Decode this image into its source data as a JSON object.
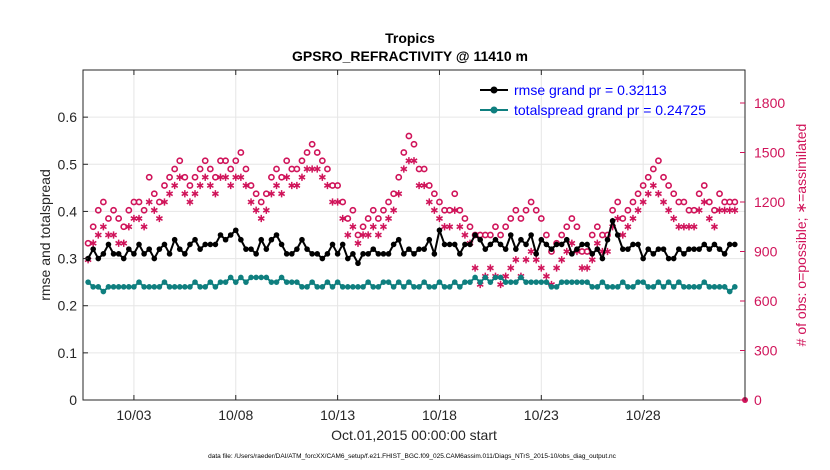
{
  "chart_data": {
    "type": "line",
    "title": "Tropics",
    "subtitle": "GPSRO_REFRACTIVITY @ 11410 m",
    "xlabel": "Oct.01,2015 00:00:00 start",
    "ylabel_left": "rmse and totalspread",
    "ylabel_right": "# of obs: o=possible; ∗=assimilated",
    "footnote": "data file: /Users/raeder/DAI/ATM_forcXX/CAM6_setup/f.e21.FHIST_BGC.f09_025.CAM6assim.011/Diags_NTrS_2015-10/obs_diag_output.nc",
    "xlim": [
      0.5,
      33.0
    ],
    "ylim_left": [
      0,
      0.7
    ],
    "ylim_right": [
      0,
      2000
    ],
    "xticks": [
      3,
      8,
      13,
      18,
      23,
      28
    ],
    "xtick_labels": [
      "10/03",
      "10/08",
      "10/13",
      "10/18",
      "10/23",
      "10/28"
    ],
    "yticks_left": [
      0,
      0.1,
      0.2,
      0.3,
      0.4,
      0.5,
      0.6
    ],
    "ytick_labels_left": [
      "0",
      "0.1",
      "0.2",
      "0.3",
      "0.4",
      "0.5",
      "0.6"
    ],
    "yticks_right": [
      0,
      300,
      600,
      900,
      1200,
      1500,
      1800
    ],
    "ytick_labels_right": [
      "0",
      "300",
      "600",
      "900",
      "1200",
      "1500",
      "1800"
    ],
    "legend": [
      "rmse grand pr = 0.32113",
      "totalspread grand pr = 0.24725"
    ],
    "colors": {
      "rmse": "#000000",
      "spread": "#0f7f7f",
      "obs": "#d0145a",
      "grid": "#e6e6e6",
      "legend_text": "#0000ff"
    },
    "grid": true,
    "x": [
      0.75,
      1.0,
      1.25,
      1.5,
      1.75,
      2.0,
      2.25,
      2.5,
      2.75,
      3.0,
      3.25,
      3.5,
      3.75,
      4.0,
      4.25,
      4.5,
      4.75,
      5.0,
      5.25,
      5.5,
      5.75,
      6.0,
      6.25,
      6.5,
      6.75,
      7.0,
      7.25,
      7.5,
      7.75,
      8.0,
      8.25,
      8.5,
      8.75,
      9.0,
      9.25,
      9.5,
      9.75,
      10.0,
      10.25,
      10.5,
      10.75,
      11.0,
      11.25,
      11.5,
      11.75,
      12.0,
      12.25,
      12.5,
      12.75,
      13.0,
      13.25,
      13.5,
      13.75,
      14.0,
      14.25,
      14.5,
      14.75,
      15.0,
      15.25,
      15.5,
      15.75,
      16.0,
      16.25,
      16.5,
      16.75,
      17.0,
      17.25,
      17.5,
      17.75,
      18.0,
      18.25,
      18.5,
      18.75,
      19.0,
      19.25,
      19.5,
      19.75,
      20.0,
      20.25,
      20.5,
      20.75,
      21.0,
      21.25,
      21.5,
      21.75,
      22.0,
      22.25,
      22.5,
      22.75,
      23.0,
      23.25,
      23.5,
      23.75,
      24.0,
      24.25,
      24.5,
      24.75,
      25.0,
      25.25,
      25.5,
      25.75,
      26.0,
      26.25,
      26.5,
      26.75,
      27.0,
      27.25,
      27.5,
      27.75,
      28.0,
      28.25,
      28.5,
      28.75,
      29.0,
      29.25,
      29.5,
      29.75,
      30.0,
      30.25,
      30.5,
      30.75,
      31.0,
      31.25,
      31.5,
      31.75,
      32.0,
      32.25,
      32.5
    ],
    "series": [
      {
        "name": "rmse",
        "values": [
          0.3,
          0.32,
          0.3,
          0.31,
          0.33,
          0.31,
          0.31,
          0.3,
          0.32,
          0.31,
          0.33,
          0.31,
          0.32,
          0.3,
          0.32,
          0.33,
          0.31,
          0.34,
          0.32,
          0.31,
          0.33,
          0.34,
          0.32,
          0.33,
          0.33,
          0.33,
          0.35,
          0.34,
          0.35,
          0.36,
          0.34,
          0.32,
          0.32,
          0.31,
          0.34,
          0.32,
          0.34,
          0.35,
          0.33,
          0.31,
          0.31,
          0.32,
          0.34,
          0.32,
          0.31,
          0.31,
          0.3,
          0.31,
          0.33,
          0.31,
          0.33,
          0.3,
          0.31,
          0.29,
          0.31,
          0.31,
          0.32,
          0.31,
          0.31,
          0.31,
          0.33,
          0.34,
          0.31,
          0.32,
          0.31,
          0.32,
          0.32,
          0.34,
          0.31,
          0.36,
          0.33,
          0.33,
          0.33,
          0.31,
          0.33,
          0.33,
          0.35,
          0.34,
          0.32,
          0.33,
          0.34,
          0.33,
          0.32,
          0.35,
          0.32,
          0.34,
          0.33,
          0.35,
          0.31,
          0.34,
          0.33,
          0.32,
          0.33,
          0.33,
          0.34,
          0.31,
          0.32,
          0.33,
          0.33,
          0.31,
          0.32,
          0.3,
          0.34,
          0.38,
          0.35,
          0.32,
          0.32,
          0.33,
          0.33,
          0.3,
          0.32,
          0.31,
          0.32,
          0.32,
          0.3,
          0.3,
          0.32,
          0.31,
          0.32,
          0.32,
          0.32,
          0.33,
          0.32,
          0.33,
          0.32,
          0.31,
          0.33,
          0.33
        ]
      },
      {
        "name": "totalspread",
        "values": [
          0.25,
          0.24,
          0.24,
          0.23,
          0.24,
          0.24,
          0.24,
          0.24,
          0.24,
          0.24,
          0.25,
          0.24,
          0.24,
          0.24,
          0.24,
          0.25,
          0.24,
          0.24,
          0.24,
          0.24,
          0.24,
          0.25,
          0.24,
          0.24,
          0.25,
          0.24,
          0.25,
          0.25,
          0.26,
          0.25,
          0.26,
          0.25,
          0.26,
          0.26,
          0.26,
          0.26,
          0.25,
          0.25,
          0.26,
          0.25,
          0.25,
          0.25,
          0.24,
          0.24,
          0.25,
          0.24,
          0.24,
          0.25,
          0.24,
          0.25,
          0.24,
          0.24,
          0.24,
          0.24,
          0.24,
          0.25,
          0.24,
          0.24,
          0.25,
          0.25,
          0.24,
          0.25,
          0.24,
          0.25,
          0.24,
          0.24,
          0.25,
          0.24,
          0.24,
          0.25,
          0.24,
          0.24,
          0.25,
          0.24,
          0.25,
          0.25,
          0.26,
          0.25,
          0.26,
          0.25,
          0.26,
          0.26,
          0.25,
          0.25,
          0.25,
          0.26,
          0.25,
          0.25,
          0.25,
          0.25,
          0.25,
          0.24,
          0.24,
          0.25,
          0.25,
          0.25,
          0.25,
          0.25,
          0.25,
          0.24,
          0.24,
          0.25,
          0.24,
          0.24,
          0.24,
          0.25,
          0.24,
          0.24,
          0.25,
          0.25,
          0.24,
          0.24,
          0.25,
          0.24,
          0.25,
          0.24,
          0.25,
          0.24,
          0.24,
          0.24,
          0.24,
          0.25,
          0.24,
          0.24,
          0.24,
          0.24,
          0.23,
          0.24
        ]
      },
      {
        "name": "obs possible",
        "values": [
          950,
          1050,
          1150,
          1200,
          1100,
          1150,
          1100,
          1050,
          1150,
          1200,
          1200,
          1150,
          1350,
          1250,
          1200,
          1300,
          1350,
          1400,
          1450,
          1350,
          1300,
          1350,
          1400,
          1450,
          1400,
          1350,
          1450,
          1450,
          1400,
          1450,
          1500,
          1400,
          1300,
          1250,
          1200,
          1250,
          1350,
          1400,
          1350,
          1450,
          1400,
          1400,
          1450,
          1500,
          1550,
          1500,
          1450,
          1400,
          1300,
          1300,
          1200,
          1100,
          1150,
          1000,
          1050,
          1100,
          1150,
          1100,
          1150,
          1200,
          1250,
          1350,
          1500,
          1600,
          1550,
          1400,
          1400,
          1300,
          1250,
          1200,
          1150,
          1150,
          1250,
          1150,
          1100,
          1050,
          1000,
          1000,
          1000,
          1000,
          1050,
          1000,
          1050,
          1100,
          1150,
          1100,
          1150,
          1200,
          1150,
          1100,
          1000,
          900,
          950,
          1000,
          1050,
          1100,
          1050,
          900,
          900,
          1000,
          1050,
          1000,
          1000,
          1150,
          1200,
          1100,
          1150,
          1200,
          1250,
          1300,
          1350,
          1400,
          1450,
          1350,
          1300,
          1250,
          1200,
          1200,
          1150,
          1150,
          1250,
          1300,
          1200,
          1150,
          1250,
          1200,
          1200,
          1200
        ]
      },
      {
        "name": "obs assimilated",
        "values": [
          850,
          950,
          1000,
          1050,
          1000,
          1000,
          950,
          950,
          1050,
          1100,
          1100,
          1050,
          1200,
          1150,
          1100,
          1200,
          1250,
          1300,
          1350,
          1250,
          1200,
          1250,
          1300,
          1350,
          1300,
          1250,
          1350,
          1350,
          1300,
          1350,
          1350,
          1300,
          1200,
          1150,
          1100,
          1150,
          1250,
          1300,
          1250,
          1350,
          1300,
          1300,
          1350,
          1400,
          1400,
          1400,
          1350,
          1300,
          1200,
          1200,
          1100,
          1000,
          1050,
          950,
          1000,
          1000,
          1050,
          1000,
          1050,
          1100,
          1150,
          1250,
          1400,
          1450,
          1450,
          1300,
          1300,
          1200,
          1150,
          1100,
          1050,
          1050,
          1150,
          1050,
          1000,
          950,
          800,
          700,
          750,
          800,
          750,
          700,
          750,
          800,
          850,
          750,
          850,
          900,
          850,
          800,
          750,
          700,
          800,
          850,
          900,
          950,
          900,
          800,
          800,
          850,
          950,
          900,
          900,
          1050,
          1100,
          1000,
          1050,
          1100,
          1150,
          1200,
          1250,
          1300,
          1250,
          1200,
          1150,
          1100,
          1050,
          1050,
          1050,
          1050,
          1150,
          1200,
          1100,
          1050,
          1150,
          1150,
          1150,
          1150
        ]
      }
    ]
  }
}
